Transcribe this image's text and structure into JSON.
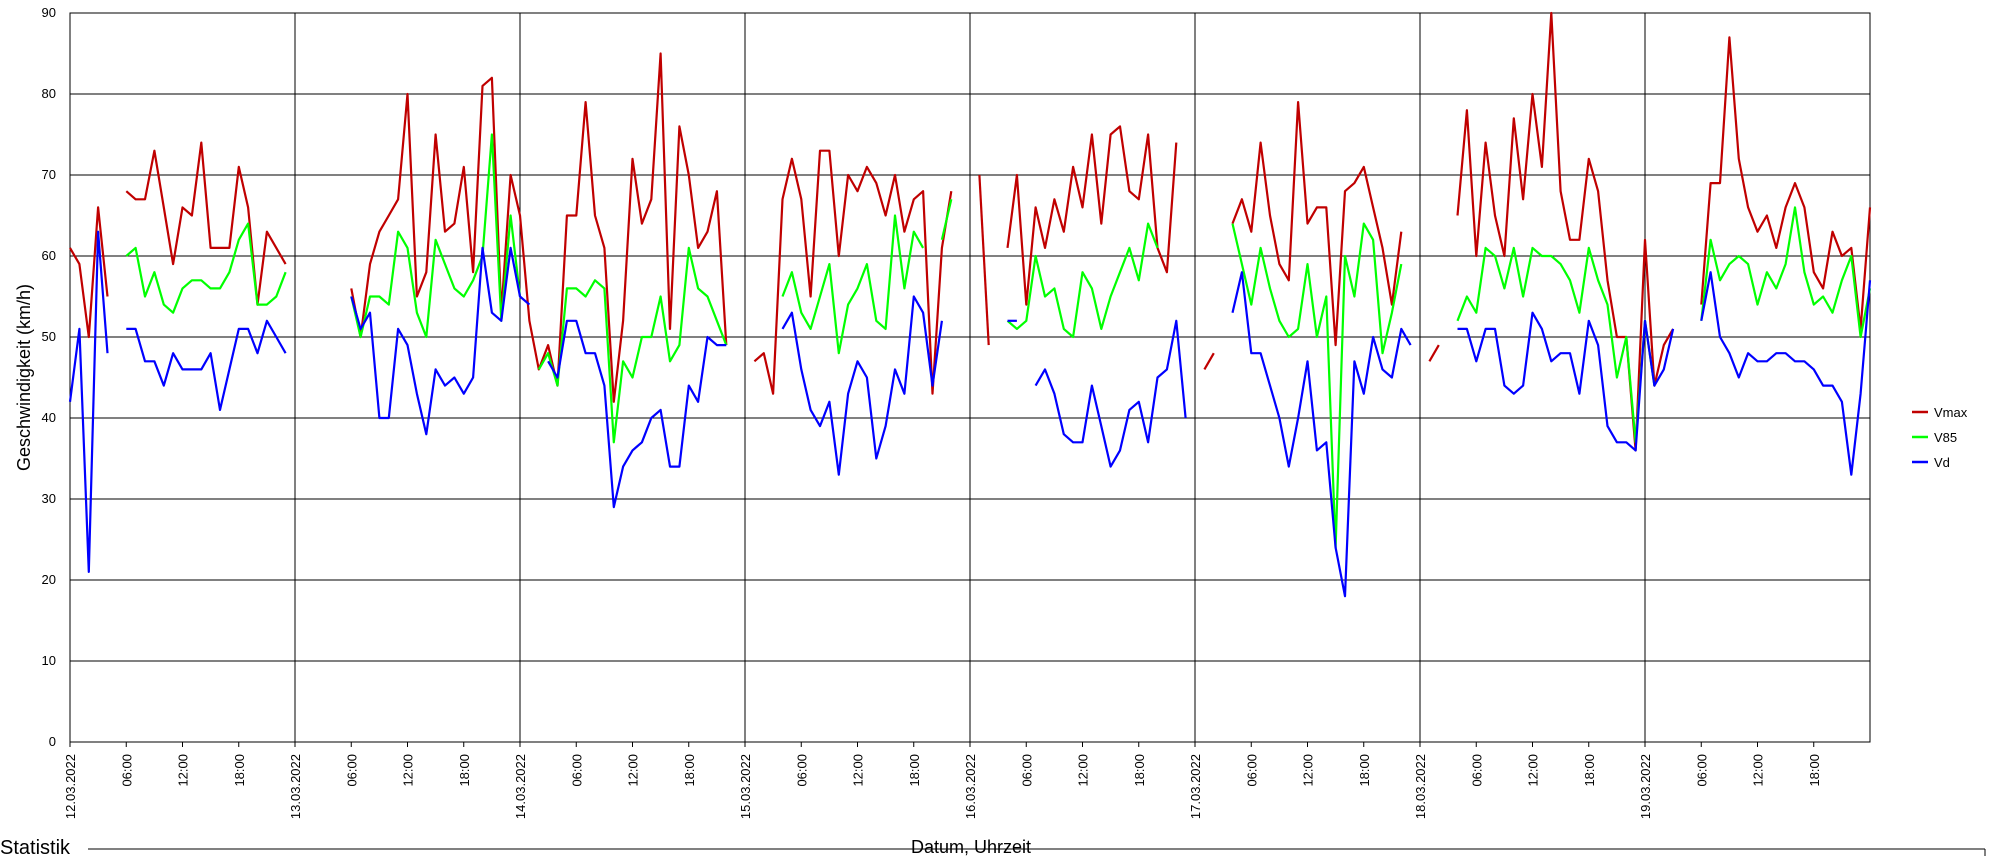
{
  "chart_data": {
    "type": "line",
    "title": "",
    "xlabel": "Datum, Uhrzeit",
    "ylabel": "Geschwindigkeit (km/h)",
    "ylim": [
      0,
      90
    ],
    "yticks": [
      0,
      10,
      20,
      30,
      40,
      50,
      60,
      70,
      80,
      90
    ],
    "grid": true,
    "legend_position": "right",
    "x_unit": "hours since 12.03.2022 00:00",
    "xlim": [
      0,
      192
    ],
    "x_tick_labels": [
      "12.03.2022",
      "06:00",
      "12:00",
      "18:00",
      "13.03.2022",
      "06:00",
      "12:00",
      "18:00",
      "14.03.2022",
      "06:00",
      "12:00",
      "18:00",
      "15.03.2022",
      "06:00",
      "12:00",
      "18:00",
      "16.03.2022",
      "06:00",
      "12:00",
      "18:00",
      "17.03.2022",
      "06:00",
      "12:00",
      "18:00",
      "18.03.2022",
      "06:00",
      "12:00",
      "18:00",
      "19.03.2022",
      "06:00",
      "12:00",
      "18:00"
    ],
    "day_labels": [
      "12.03.2022",
      "13.03.2022",
      "14.03.2022",
      "15.03.2022",
      "16.03.2022",
      "17.03.2022",
      "18.03.2022",
      "19.03.2022"
    ],
    "series": [
      {
        "name": "Vmax",
        "color": "#c00000",
        "values": [
          61,
          59,
          50,
          66,
          55,
          null,
          68,
          67,
          67,
          73,
          66,
          59,
          66,
          65,
          74,
          61,
          61,
          61,
          71,
          66,
          54,
          63,
          61,
          59,
          null,
          null,
          null,
          null,
          null,
          null,
          56,
          50,
          59,
          63,
          65,
          67,
          80,
          55,
          58,
          75,
          63,
          64,
          71,
          58,
          81,
          82,
          53,
          70,
          65,
          52,
          46,
          49,
          44,
          65,
          65,
          79,
          65,
          61,
          42,
          52,
          72,
          64,
          67,
          85,
          51,
          76,
          70,
          61,
          63,
          68,
          49,
          null,
          null,
          47,
          48,
          43,
          67,
          72,
          67,
          55,
          73,
          73,
          60,
          70,
          68,
          71,
          69,
          65,
          70,
          63,
          67,
          68,
          43,
          61,
          68,
          null,
          null,
          70,
          49,
          null,
          61,
          70,
          54,
          66,
          61,
          67,
          63,
          71,
          66,
          75,
          64,
          75,
          76,
          68,
          67,
          75,
          61,
          58,
          74,
          null,
          null,
          46,
          48,
          null,
          64,
          67,
          63,
          74,
          65,
          59,
          57,
          79,
          64,
          66,
          66,
          49,
          68,
          69,
          71,
          66,
          61,
          54,
          63,
          null,
          null,
          47,
          49,
          null,
          65,
          78,
          60,
          74,
          65,
          60,
          77,
          67,
          80,
          71,
          90,
          68,
          62,
          62,
          72,
          68,
          57,
          50,
          50,
          36,
          62,
          44,
          49,
          51,
          null,
          null,
          54,
          69,
          69,
          87,
          72,
          66,
          63,
          65,
          61,
          66,
          69,
          66,
          58,
          56,
          63,
          60,
          61,
          51,
          66
        ]
      },
      {
        "name": "V85",
        "color": "#00ff00",
        "values": [
          null,
          null,
          null,
          null,
          null,
          null,
          60,
          61,
          55,
          58,
          54,
          53,
          56,
          57,
          57,
          56,
          56,
          58,
          62,
          64,
          54,
          54,
          55,
          58,
          null,
          null,
          null,
          null,
          null,
          null,
          55,
          50,
          55,
          55,
          54,
          63,
          61,
          53,
          50,
          62,
          59,
          56,
          55,
          57,
          60,
          75,
          52,
          65,
          55,
          null,
          46,
          48,
          44,
          56,
          56,
          55,
          57,
          56,
          37,
          47,
          45,
          50,
          50,
          55,
          47,
          49,
          61,
          56,
          55,
          52,
          49,
          null,
          null,
          null,
          null,
          null,
          55,
          58,
          53,
          51,
          55,
          59,
          48,
          54,
          56,
          59,
          52,
          51,
          65,
          56,
          63,
          61,
          null,
          62,
          67,
          null,
          null,
          null,
          null,
          null,
          52,
          51,
          52,
          60,
          55,
          56,
          51,
          50,
          58,
          56,
          51,
          55,
          58,
          61,
          57,
          64,
          61,
          null,
          null,
          null,
          null,
          null,
          null,
          null,
          64,
          59,
          54,
          61,
          56,
          52,
          50,
          51,
          59,
          50,
          55,
          24,
          60,
          55,
          64,
          62,
          48,
          53,
          59,
          null,
          null,
          null,
          null,
          null,
          52,
          55,
          53,
          61,
          60,
          56,
          61,
          55,
          61,
          60,
          60,
          59,
          57,
          53,
          61,
          57,
          54,
          45,
          50,
          37,
          52,
          44,
          null,
          null,
          null,
          null,
          52,
          62,
          57,
          59,
          60,
          59,
          54,
          58,
          56,
          59,
          66,
          58,
          54,
          55,
          53,
          57,
          60,
          50,
          56
        ]
      },
      {
        "name": "Vd",
        "color": "#0000ff",
        "values": [
          42,
          51,
          21,
          63,
          48,
          null,
          51,
          51,
          47,
          47,
          44,
          48,
          46,
          46,
          46,
          48,
          41,
          46,
          51,
          51,
          48,
          52,
          50,
          48,
          null,
          null,
          null,
          null,
          null,
          null,
          55,
          51,
          53,
          40,
          40,
          51,
          49,
          43,
          38,
          46,
          44,
          45,
          43,
          45,
          61,
          53,
          52,
          61,
          55,
          54,
          null,
          47,
          45,
          52,
          52,
          48,
          48,
          44,
          29,
          34,
          36,
          37,
          40,
          41,
          34,
          34,
          44,
          42,
          50,
          49,
          49,
          null,
          null,
          null,
          null,
          null,
          51,
          53,
          46,
          41,
          39,
          42,
          33,
          43,
          47,
          45,
          35,
          39,
          46,
          43,
          55,
          53,
          44,
          52,
          null,
          null,
          null,
          58,
          null,
          null,
          52,
          52,
          null,
          44,
          46,
          43,
          38,
          37,
          37,
          44,
          39,
          34,
          36,
          41,
          42,
          37,
          45,
          46,
          52,
          40,
          null,
          null,
          null,
          null,
          53,
          58,
          48,
          48,
          44,
          40,
          34,
          40,
          47,
          36,
          37,
          24,
          18,
          47,
          43,
          50,
          46,
          45,
          51,
          49,
          null,
          null,
          null,
          null,
          51,
          51,
          47,
          51,
          51,
          44,
          43,
          44,
          53,
          51,
          47,
          48,
          48,
          43,
          52,
          49,
          39,
          37,
          37,
          36,
          52,
          44,
          46,
          51,
          null,
          null,
          52,
          58,
          50,
          48,
          45,
          48,
          47,
          47,
          48,
          48,
          47,
          47,
          46,
          44,
          44,
          42,
          33,
          43,
          57
        ]
      }
    ]
  },
  "footer": {
    "statistik_label": "Statistik"
  }
}
